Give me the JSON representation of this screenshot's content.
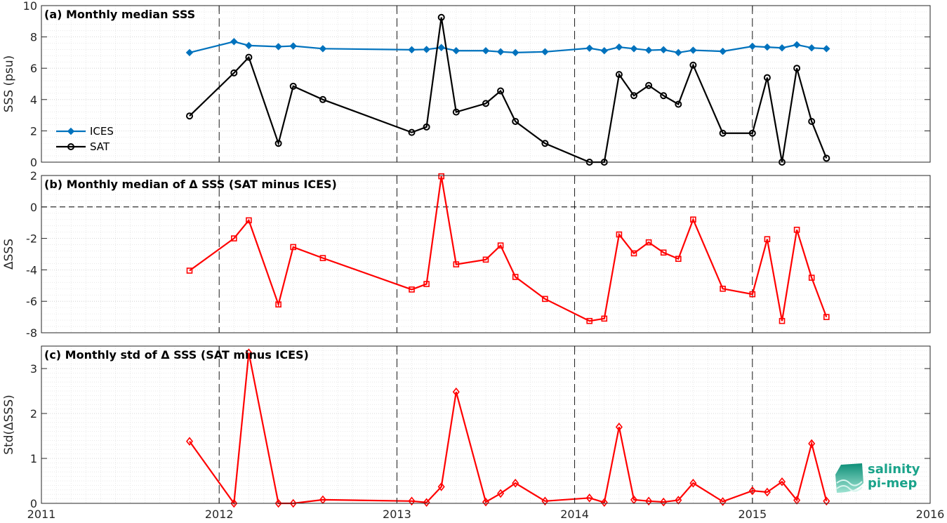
{
  "chart_data": [
    {
      "type": "line",
      "title": "(a) Monthly median SSS",
      "ylabel": "SSS (psu)",
      "ylim": [
        0,
        10
      ],
      "yticks": [
        0,
        2,
        4,
        6,
        8,
        10
      ],
      "legend_position": "center-left",
      "series": [
        {
          "name": "ICES",
          "color": "#0072bd",
          "marker": "filled-diamond",
          "x": [
            "2011-11",
            "2012-02",
            "2012-03",
            "2012-05",
            "2012-06",
            "2012-08",
            "2013-02",
            "2013-03",
            "2013-04",
            "2013-05",
            "2013-07",
            "2013-08",
            "2013-09",
            "2013-11",
            "2014-02",
            "2014-03",
            "2014-04",
            "2014-05",
            "2014-06",
            "2014-07",
            "2014-08",
            "2014-09",
            "2014-11",
            "2015-01",
            "2015-02",
            "2015-03",
            "2015-04",
            "2015-05",
            "2015-06"
          ],
          "values": [
            7.0,
            7.7,
            7.45,
            7.38,
            7.42,
            7.25,
            7.18,
            7.2,
            7.32,
            7.12,
            7.12,
            7.05,
            7.0,
            7.05,
            7.28,
            7.12,
            7.35,
            7.25,
            7.15,
            7.18,
            7.0,
            7.15,
            7.08,
            7.4,
            7.35,
            7.3,
            7.5,
            7.3,
            7.25
          ]
        },
        {
          "name": "SAT",
          "color": "#000000",
          "marker": "open-circle",
          "x": [
            "2011-11",
            "2012-02",
            "2012-03",
            "2012-05",
            "2012-06",
            "2012-08",
            "2013-02",
            "2013-03",
            "2013-04",
            "2013-05",
            "2013-07",
            "2013-08",
            "2013-09",
            "2013-11",
            "2014-02",
            "2014-03",
            "2014-04",
            "2014-05",
            "2014-06",
            "2014-07",
            "2014-08",
            "2014-09",
            "2014-11",
            "2015-01",
            "2015-02",
            "2015-03",
            "2015-04",
            "2015-05",
            "2015-06"
          ],
          "values": [
            2.95,
            5.7,
            6.7,
            1.2,
            4.85,
            4.0,
            1.9,
            2.25,
            9.25,
            3.2,
            3.75,
            4.55,
            2.6,
            1.2,
            0.0,
            0.0,
            5.6,
            4.25,
            4.9,
            4.25,
            3.7,
            6.2,
            1.85,
            1.85,
            5.4,
            0.0,
            6.0,
            2.6,
            0.25
          ]
        }
      ]
    },
    {
      "type": "line",
      "title": "(b) Monthly median of Δ SSS (SAT minus ICES)",
      "ylabel": "ΔSSS",
      "ylim": [
        -8,
        2
      ],
      "yticks": [
        -8,
        -6,
        -4,
        -2,
        0,
        2
      ],
      "zero_line": true,
      "series": [
        {
          "color": "#ff0000",
          "marker": "open-square",
          "x": [
            "2011-11",
            "2012-02",
            "2012-03",
            "2012-05",
            "2012-06",
            "2012-08",
            "2013-02",
            "2013-03",
            "2013-04",
            "2013-05",
            "2013-07",
            "2013-08",
            "2013-09",
            "2013-11",
            "2014-02",
            "2014-03",
            "2014-04",
            "2014-05",
            "2014-06",
            "2014-07",
            "2014-08",
            "2014-09",
            "2014-11",
            "2015-01",
            "2015-02",
            "2015-03",
            "2015-04",
            "2015-05",
            "2015-06"
          ],
          "values": [
            -4.05,
            -2.0,
            -0.85,
            -6.2,
            -2.55,
            -3.25,
            -5.25,
            -4.9,
            1.95,
            -3.65,
            -3.35,
            -2.45,
            -4.45,
            -5.85,
            -7.25,
            -7.1,
            -1.75,
            -2.95,
            -2.25,
            -2.9,
            -3.3,
            -0.8,
            -5.2,
            -5.55,
            -2.05,
            -7.25,
            -1.45,
            -4.5,
            -7.0
          ]
        }
      ]
    },
    {
      "type": "line",
      "title": "(c) Monthly std of Δ SSS (SAT minus ICES)",
      "ylabel": "Std(ΔSSS)",
      "ylim": [
        0,
        3.5
      ],
      "yticks": [
        0,
        1,
        2,
        3
      ],
      "xlim": [
        "2011-01",
        "2016-01"
      ],
      "xticks": [
        "2011",
        "2012",
        "2013",
        "2014",
        "2015",
        "2016"
      ],
      "series": [
        {
          "color": "#ff0000",
          "marker": "open-diamond",
          "x": [
            "2011-11",
            "2012-02",
            "2012-03",
            "2012-05",
            "2012-06",
            "2012-08",
            "2013-02",
            "2013-03",
            "2013-04",
            "2013-05",
            "2013-07",
            "2013-08",
            "2013-09",
            "2013-11",
            "2014-02",
            "2014-03",
            "2014-04",
            "2014-05",
            "2014-06",
            "2014-07",
            "2014-08",
            "2014-09",
            "2014-11",
            "2015-01",
            "2015-02",
            "2015-03",
            "2015-04",
            "2015-05",
            "2015-06"
          ],
          "values": [
            1.38,
            0.0,
            3.35,
            0.0,
            0.0,
            0.08,
            0.05,
            0.02,
            0.37,
            2.48,
            0.03,
            0.22,
            0.45,
            0.05,
            0.12,
            0.02,
            1.7,
            0.08,
            0.05,
            0.03,
            0.07,
            0.45,
            0.04,
            0.28,
            0.25,
            0.48,
            0.07,
            1.33,
            0.05
          ]
        }
      ]
    }
  ],
  "logo": {
    "line1": "salinity",
    "line2": "pi-mep",
    "color": "#1aa38a"
  }
}
